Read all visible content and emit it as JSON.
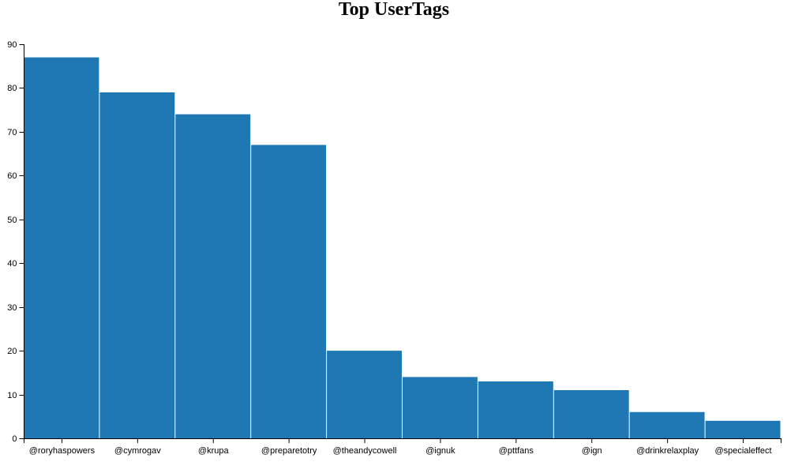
{
  "chart_data": {
    "type": "bar",
    "title": "Top UserTags",
    "xlabel": "",
    "ylabel": "",
    "categories": [
      "@roryhaspowers",
      "@cymrogav",
      "@krupa",
      "@preparetotry",
      "@theandycowell",
      "@ignuk",
      "@pttfans",
      "@ign",
      "@drinkrelaxplay",
      "@specialeffect"
    ],
    "values": [
      87,
      79,
      74,
      67,
      20,
      14,
      13,
      11,
      6,
      4
    ],
    "ylim": [
      0,
      90
    ],
    "yticks": [
      0,
      10,
      20,
      30,
      40,
      50,
      60,
      70,
      80,
      90
    ],
    "bar_color": "#1f77b4",
    "grid": false,
    "legend": "none"
  }
}
